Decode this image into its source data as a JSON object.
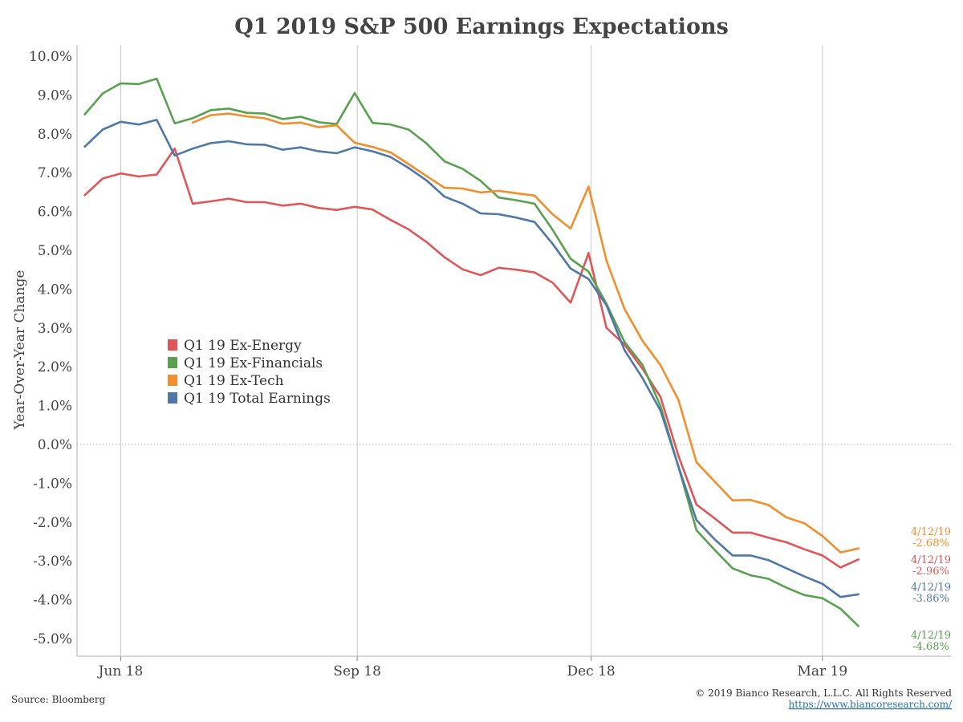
{
  "chart_data": {
    "type": "line",
    "title": "Q1 2019 S&P 500 Earnings Expectations",
    "ylabel": "Year-Over-Year Change",
    "xlabel": "",
    "ylim": [
      -5.0,
      10.0
    ],
    "y_ticks": [
      10.0,
      9.0,
      8.0,
      7.0,
      6.0,
      5.0,
      4.0,
      3.0,
      2.0,
      1.0,
      0.0,
      -1.0,
      -2.0,
      -3.0,
      -4.0,
      -5.0
    ],
    "y_tick_labels": [
      "10.0%",
      "9.0%",
      "8.0%",
      "7.0%",
      "6.0%",
      "5.0%",
      "4.0%",
      "3.0%",
      "2.0%",
      "1.0%",
      "0.0%",
      "-1.0%",
      "-2.0%",
      "-3.0%",
      "-4.0%",
      "-5.0%"
    ],
    "x_ticks": [
      {
        "date": "2018-06-01",
        "label": "Jun 18"
      },
      {
        "date": "2018-09-01",
        "label": "Sep 18"
      },
      {
        "date": "2018-12-01",
        "label": "Dec 18"
      },
      {
        "date": "2019-03-01",
        "label": "Mar 19"
      }
    ],
    "x_range": [
      "2018-05-15",
      "2019-04-20"
    ],
    "grid": "vertical lines at month ticks; dotted line at 0.0%",
    "legend_position": "middle-left",
    "x": [
      "2018-05-18",
      "2018-05-25",
      "2018-06-01",
      "2018-06-08",
      "2018-06-15",
      "2018-06-22",
      "2018-06-29",
      "2018-07-06",
      "2018-07-13",
      "2018-07-20",
      "2018-07-27",
      "2018-08-03",
      "2018-08-10",
      "2018-08-17",
      "2018-08-24",
      "2018-08-31",
      "2018-09-07",
      "2018-09-14",
      "2018-09-21",
      "2018-09-28",
      "2018-10-05",
      "2018-10-12",
      "2018-10-19",
      "2018-10-26",
      "2018-11-02",
      "2018-11-09",
      "2018-11-16",
      "2018-11-23",
      "2018-11-30",
      "2018-12-07",
      "2018-12-14",
      "2018-12-21",
      "2018-12-28",
      "2019-01-04",
      "2019-01-11",
      "2019-01-18",
      "2019-01-25",
      "2019-02-01",
      "2019-02-08",
      "2019-02-15",
      "2019-02-22",
      "2019-03-01",
      "2019-03-08",
      "2019-03-15",
      "2019-03-22",
      "2019-03-29",
      "2019-04-05",
      "2019-04-12"
    ],
    "series": [
      {
        "name": "Q1 19 Ex-Energy",
        "color": "#e05759",
        "values": [
          6.42,
          6.85,
          6.98,
          6.9,
          6.95,
          7.62,
          6.2,
          6.26,
          6.33,
          6.24,
          6.24,
          6.15,
          6.2,
          6.09,
          6.04,
          6.12,
          6.05,
          5.78,
          5.54,
          5.21,
          4.82,
          4.51,
          4.36,
          4.55,
          4.5,
          4.43,
          4.17,
          3.65,
          4.93,
          3.0,
          2.57,
          1.95,
          1.22,
          -0.3,
          -1.55,
          -1.9,
          -2.27,
          -2.27,
          -2.4,
          -2.52,
          -2.7,
          -2.86,
          -3.17,
          -2.96,
          null,
          null,
          null,
          null
        ]
      },
      {
        "name": "Q1 19 Ex-Financials",
        "color": "#59a14f",
        "values": [
          8.5,
          9.04,
          9.3,
          9.28,
          9.42,
          8.27,
          8.4,
          8.61,
          8.65,
          8.54,
          8.52,
          8.38,
          8.44,
          8.3,
          8.25,
          9.05,
          8.28,
          8.24,
          8.11,
          7.75,
          7.29,
          7.1,
          6.79,
          6.36,
          6.29,
          6.2,
          5.53,
          4.78,
          4.45,
          3.62,
          2.64,
          2.05,
          0.99,
          -0.58,
          -2.21,
          -2.71,
          -3.19,
          -3.37,
          -3.46,
          -3.69,
          -3.88,
          -3.96,
          -4.23,
          -4.68,
          null,
          null,
          null,
          null
        ]
      },
      {
        "name": "Q1 19 Ex-Tech",
        "color": "#f28e2b",
        "values": [
          null,
          null,
          null,
          null,
          null,
          null,
          8.29,
          8.48,
          8.52,
          8.45,
          8.4,
          8.26,
          8.29,
          8.17,
          8.22,
          7.77,
          7.66,
          7.52,
          7.22,
          6.91,
          6.61,
          6.59,
          6.49,
          6.53,
          6.47,
          6.41,
          5.93,
          5.56,
          6.64,
          4.73,
          3.49,
          2.67,
          2.04,
          1.14,
          -0.46,
          -0.95,
          -1.44,
          -1.43,
          -1.56,
          -1.88,
          -2.03,
          -2.36,
          -2.78,
          -2.68,
          null,
          null,
          null,
          null
        ]
      },
      {
        "name": "Q1 19 Total Earnings",
        "color": "#4e79a7",
        "values": [
          7.67,
          8.11,
          8.31,
          8.24,
          8.36,
          7.44,
          7.62,
          7.76,
          7.81,
          7.73,
          7.72,
          7.59,
          7.65,
          7.55,
          7.5,
          7.65,
          7.55,
          7.4,
          7.12,
          6.8,
          6.38,
          6.2,
          5.95,
          5.93,
          5.84,
          5.73,
          5.17,
          4.53,
          4.26,
          3.58,
          2.43,
          1.71,
          0.87,
          -0.57,
          -1.95,
          -2.44,
          -2.86,
          -2.86,
          -2.98,
          -3.19,
          -3.4,
          -3.59,
          -3.93,
          -3.86,
          null,
          null,
          null,
          null
        ]
      }
    ],
    "end_labels": [
      {
        "series": "Q1 19 Ex-Tech",
        "date_label": "4/12/19",
        "value_label": "-2.68%"
      },
      {
        "series": "Q1 19 Ex-Energy",
        "date_label": "4/12/19",
        "value_label": "-2.96%"
      },
      {
        "series": "Q1 19 Total Earnings",
        "date_label": "4/12/19",
        "value_label": "-3.86%"
      },
      {
        "series": "Q1 19 Ex-Financials",
        "date_label": "4/12/19",
        "value_label": "-4.68%"
      }
    ]
  },
  "footer": {
    "source": "Source: Bloomberg",
    "copyright": "© 2019 Bianco Research, L.L.C. All Rights Reserved",
    "url": "https://www.biancoresearch.com/"
  }
}
